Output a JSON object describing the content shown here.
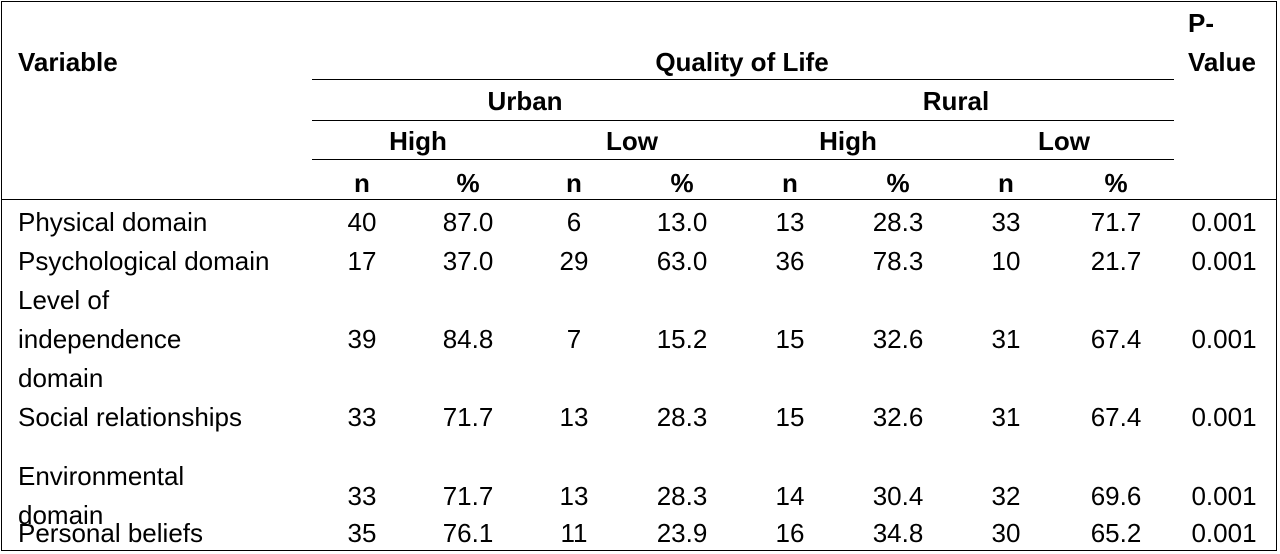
{
  "header": {
    "variable": "Variable",
    "quality_of_life": "Quality of Life",
    "p_value_line1": "P-",
    "p_value_line2": "Value",
    "urban": "Urban",
    "rural": "Rural",
    "high": "High",
    "low": "Low",
    "n": "n",
    "pct": "%"
  },
  "rows": [
    {
      "label": [
        "Physical domain"
      ],
      "vals": [
        "40",
        "87.0",
        "6",
        "13.0",
        "13",
        "28.3",
        "33",
        "71.7",
        "0.001"
      ]
    },
    {
      "label": [
        "Psychological domain"
      ],
      "vals": [
        "17",
        "37.0",
        "29",
        "63.0",
        "36",
        "78.3",
        "10",
        "21.7",
        "0.001"
      ]
    },
    {
      "label": [
        "Level of",
        "independence",
        "domain"
      ],
      "vals": [
        "39",
        "84.8",
        "7",
        "15.2",
        "15",
        "32.6",
        "31",
        "67.4",
        "0.001"
      ]
    },
    {
      "label": [
        "Social relationships"
      ],
      "vals": [
        "33",
        "71.7",
        "13",
        "28.3",
        "15",
        "32.6",
        "31",
        "67.4",
        "0.001"
      ]
    },
    {
      "label": [
        "Environmental",
        "domain"
      ],
      "vals": [
        "33",
        "71.7",
        "13",
        "28.3",
        "14",
        "30.4",
        "32",
        "69.6",
        "0.001"
      ]
    },
    {
      "label": [
        "Personal beliefs"
      ],
      "vals": [
        "35",
        "76.1",
        "11",
        "23.9",
        "16",
        "34.8",
        "30",
        "65.2",
        "0.001"
      ]
    }
  ]
}
